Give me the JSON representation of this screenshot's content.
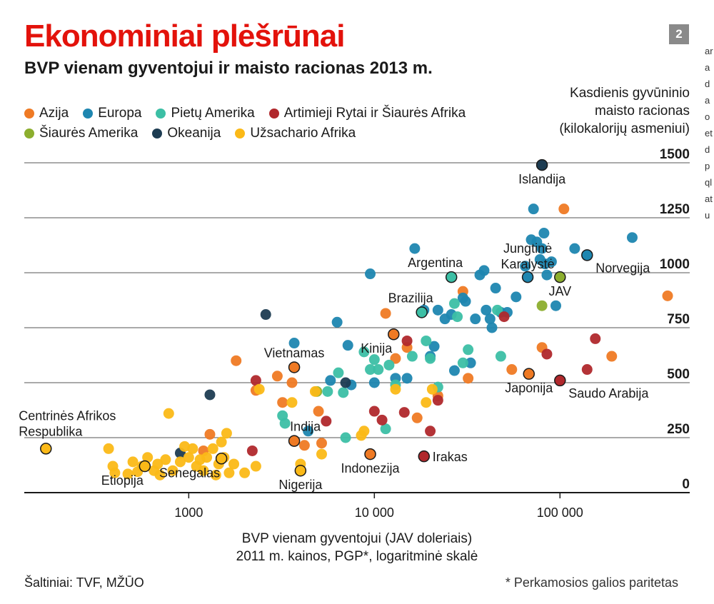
{
  "header": {
    "title": "Ekonominiai plėšrūnai",
    "subtitle": "BVP vienam gyventojui ir maisto racionas 2013 m.",
    "badge": "2"
  },
  "legend": [
    {
      "name": "Azija",
      "color": "#ef7a24"
    },
    {
      "name": "Europa",
      "color": "#1e86b0"
    },
    {
      "name": "Pietų Amerika",
      "color": "#3cbfa5"
    },
    {
      "name": "Artimieji Rytai ir Šiaurės Afrika",
      "color": "#b0282c"
    },
    {
      "name": "Šiaurės Amerika",
      "color": "#8cae2e"
    },
    {
      "name": "Okeanija",
      "color": "#1d3c52"
    },
    {
      "name": "Užsachario Afrika",
      "color": "#fbb917"
    }
  ],
  "axes": {
    "ylabel_lines": [
      "Kasdienis gyvūninio",
      "maisto racionas",
      "(kilokalorijų asmeniui)"
    ],
    "xlabel_lines": [
      "BVP vienam gyventojui (JAV doleriais)",
      "2011 m. kainos, PGP*, logaritminė skalė"
    ]
  },
  "footer": {
    "source": "Šaltiniai: TVF, MŽŪO",
    "footnote": "* Perkamosios galios paritetas"
  },
  "side_text": "aradaoetdpqlatu",
  "chart_data": {
    "type": "scatter",
    "x_scale": "log",
    "xlim": [
      130,
      500000
    ],
    "ylim": [
      0,
      1500
    ],
    "x_ticks": [
      {
        "v": 1000,
        "label": "1000"
      },
      {
        "v": 10000,
        "label": "10 000"
      },
      {
        "v": 100000,
        "label": "100 000"
      }
    ],
    "y_ticks": [
      {
        "v": 0,
        "label": "0"
      },
      {
        "v": 250,
        "label": "250"
      },
      {
        "v": 500,
        "label": "500"
      },
      {
        "v": 750,
        "label": "750"
      },
      {
        "v": 1000,
        "label": "1000"
      },
      {
        "v": 1250,
        "label": "1250"
      },
      {
        "v": 1500,
        "label": "1500"
      }
    ],
    "grid": "horizontal",
    "series": [
      {
        "name": "Azija",
        "color": "#ef7a24",
        "points": [
          [
            1800,
            600
          ],
          [
            3000,
            530
          ],
          [
            3200,
            410
          ],
          [
            3600,
            500
          ],
          [
            4200,
            215
          ],
          [
            5000,
            370
          ],
          [
            5200,
            225
          ],
          [
            11500,
            815
          ],
          [
            13000,
            610
          ],
          [
            15000,
            660
          ],
          [
            17000,
            340
          ],
          [
            22000,
            440
          ],
          [
            30000,
            915
          ],
          [
            32000,
            520
          ],
          [
            55000,
            560
          ],
          [
            80000,
            660
          ],
          [
            105000,
            1290
          ],
          [
            190000,
            620
          ],
          [
            380000,
            895
          ],
          [
            1300,
            265
          ],
          [
            1200,
            190
          ],
          [
            2300,
            465
          ]
        ]
      },
      {
        "name": "Europa",
        "color": "#1e86b0",
        "points": [
          [
            3700,
            680
          ],
          [
            6300,
            775
          ],
          [
            7200,
            670
          ],
          [
            7500,
            490
          ],
          [
            9500,
            995
          ],
          [
            10000,
            500
          ],
          [
            13000,
            520
          ],
          [
            15000,
            520
          ],
          [
            16500,
            1110
          ],
          [
            18500,
            830
          ],
          [
            20000,
            620
          ],
          [
            21000,
            665
          ],
          [
            22000,
            830
          ],
          [
            24000,
            790
          ],
          [
            26000,
            810
          ],
          [
            27000,
            555
          ],
          [
            30000,
            885
          ],
          [
            31000,
            870
          ],
          [
            33000,
            590
          ],
          [
            35000,
            790
          ],
          [
            37000,
            990
          ],
          [
            39000,
            1010
          ],
          [
            40000,
            830
          ],
          [
            42000,
            790
          ],
          [
            43000,
            750
          ],
          [
            45000,
            930
          ],
          [
            48000,
            820
          ],
          [
            52000,
            820
          ],
          [
            58000,
            890
          ],
          [
            65000,
            1030
          ],
          [
            70000,
            1150
          ],
          [
            72000,
            1290
          ],
          [
            75000,
            1140
          ],
          [
            78000,
            1060
          ],
          [
            80000,
            1110
          ],
          [
            82000,
            1180
          ],
          [
            83000,
            1040
          ],
          [
            85000,
            990
          ],
          [
            90000,
            1050
          ],
          [
            95000,
            850
          ],
          [
            120000,
            1110
          ],
          [
            245000,
            1160
          ],
          [
            4400,
            280
          ],
          [
            5800,
            510
          ]
        ]
      },
      {
        "name": "Pietų Amerika",
        "color": "#3cbfa5",
        "points": [
          [
            3200,
            350
          ],
          [
            3300,
            315
          ],
          [
            5600,
            460
          ],
          [
            6400,
            545
          ],
          [
            6800,
            455
          ],
          [
            8800,
            640
          ],
          [
            9500,
            560
          ],
          [
            10000,
            605
          ],
          [
            10500,
            560
          ],
          [
            12000,
            580
          ],
          [
            13000,
            490
          ],
          [
            16000,
            620
          ],
          [
            19000,
            690
          ],
          [
            20000,
            610
          ],
          [
            22000,
            480
          ],
          [
            27000,
            860
          ],
          [
            28000,
            800
          ],
          [
            30000,
            590
          ],
          [
            32000,
            650
          ],
          [
            46000,
            830
          ],
          [
            48000,
            620
          ],
          [
            11500,
            290
          ],
          [
            7000,
            250
          ]
        ]
      },
      {
        "name": "Artimieji Rytai ir Šiaurės Afrika",
        "color": "#b0282c",
        "points": [
          [
            2300,
            510
          ],
          [
            2200,
            190
          ],
          [
            5500,
            325
          ],
          [
            10000,
            370
          ],
          [
            11000,
            330
          ],
          [
            14500,
            365
          ],
          [
            20000,
            280
          ],
          [
            22000,
            420
          ],
          [
            50000,
            800
          ],
          [
            85000,
            630
          ],
          [
            140000,
            560
          ],
          [
            155000,
            700
          ],
          [
            15000,
            690
          ]
        ]
      },
      {
        "name": "Šiaurės Amerika",
        "color": "#8cae2e",
        "points": [
          [
            80000,
            850
          ],
          [
            4900,
            460
          ]
        ]
      },
      {
        "name": "Okeanija",
        "color": "#1d3c52",
        "points": [
          [
            2600,
            810
          ],
          [
            1300,
            445
          ],
          [
            900,
            180
          ],
          [
            7000,
            500
          ]
        ]
      },
      {
        "name": "Užsachario Afrika",
        "color": "#fbb917",
        "points": [
          [
            370,
            200
          ],
          [
            390,
            120
          ],
          [
            400,
            90
          ],
          [
            470,
            85
          ],
          [
            500,
            140
          ],
          [
            530,
            95
          ],
          [
            560,
            120
          ],
          [
            600,
            160
          ],
          [
            650,
            100
          ],
          [
            700,
            80
          ],
          [
            750,
            150
          ],
          [
            780,
            360
          ],
          [
            820,
            100
          ],
          [
            900,
            140
          ],
          [
            950,
            210
          ],
          [
            1000,
            160
          ],
          [
            1050,
            200
          ],
          [
            1100,
            120
          ],
          [
            1150,
            150
          ],
          [
            1200,
            100
          ],
          [
            1250,
            160
          ],
          [
            1350,
            200
          ],
          [
            1400,
            80
          ],
          [
            1450,
            130
          ],
          [
            1500,
            230
          ],
          [
            1600,
            270
          ],
          [
            1650,
            90
          ],
          [
            1750,
            130
          ],
          [
            2000,
            90
          ],
          [
            2300,
            120
          ],
          [
            2400,
            470
          ],
          [
            3600,
            410
          ],
          [
            4000,
            130
          ],
          [
            4800,
            460
          ],
          [
            5200,
            175
          ],
          [
            8500,
            260
          ],
          [
            8800,
            280
          ],
          [
            13000,
            470
          ],
          [
            19000,
            410
          ],
          [
            20500,
            470
          ],
          [
            1550,
            160
          ],
          [
            680,
            130
          ]
        ]
      }
    ],
    "labeled_points": [
      {
        "name": "Islandija",
        "x": 80000,
        "y": 1490,
        "color": "#1d3c52",
        "pos": "below"
      },
      {
        "name": "Norvegija",
        "x": 140000,
        "y": 1080,
        "color": "#1e86b0",
        "pos": "below-right"
      },
      {
        "name": "Jungtinė Karalystė",
        "x": 67000,
        "y": 980,
        "color": "#1e86b0",
        "pos": "above-multi"
      },
      {
        "name": "Argentina",
        "x": 26000,
        "y": 980,
        "color": "#3cbfa5",
        "pos": "above-left"
      },
      {
        "name": "JAV",
        "x": 100000,
        "y": 980,
        "color": "#8cae2e",
        "pos": "below"
      },
      {
        "name": "Brazilija",
        "x": 18000,
        "y": 820,
        "color": "#3cbfa5",
        "pos": "above-left"
      },
      {
        "name": "Kinija",
        "x": 12700,
        "y": 720,
        "color": "#ef7a24",
        "pos": "below-left"
      },
      {
        "name": "Vietnamas",
        "x": 3700,
        "y": 570,
        "color": "#ef7a24",
        "pos": "above"
      },
      {
        "name": "Japonija",
        "x": 68000,
        "y": 540,
        "color": "#ef7a24",
        "pos": "below"
      },
      {
        "name": "Saudo Arabija",
        "x": 100000,
        "y": 510,
        "color": "#b0282c",
        "pos": "below-right"
      },
      {
        "name": "Centrinės Afrikos Respublika",
        "x": 170,
        "y": 200,
        "color": "#fbb917",
        "pos": "above-multi-left"
      },
      {
        "name": "Indija",
        "x": 3700,
        "y": 235,
        "color": "#ef7a24",
        "pos": "above-right"
      },
      {
        "name": "Indonezija",
        "x": 9500,
        "y": 175,
        "color": "#ef7a24",
        "pos": "below"
      },
      {
        "name": "Irakas",
        "x": 18500,
        "y": 165,
        "color": "#b0282c",
        "pos": "right"
      },
      {
        "name": "Senegalas",
        "x": 1500,
        "y": 155,
        "color": "#fbb917",
        "pos": "below-left"
      },
      {
        "name": "Etiopija",
        "x": 580,
        "y": 120,
        "color": "#fbb917",
        "pos": "below-left"
      },
      {
        "name": "Nigerija",
        "x": 4000,
        "y": 100,
        "color": "#fbb917",
        "pos": "below"
      }
    ]
  }
}
